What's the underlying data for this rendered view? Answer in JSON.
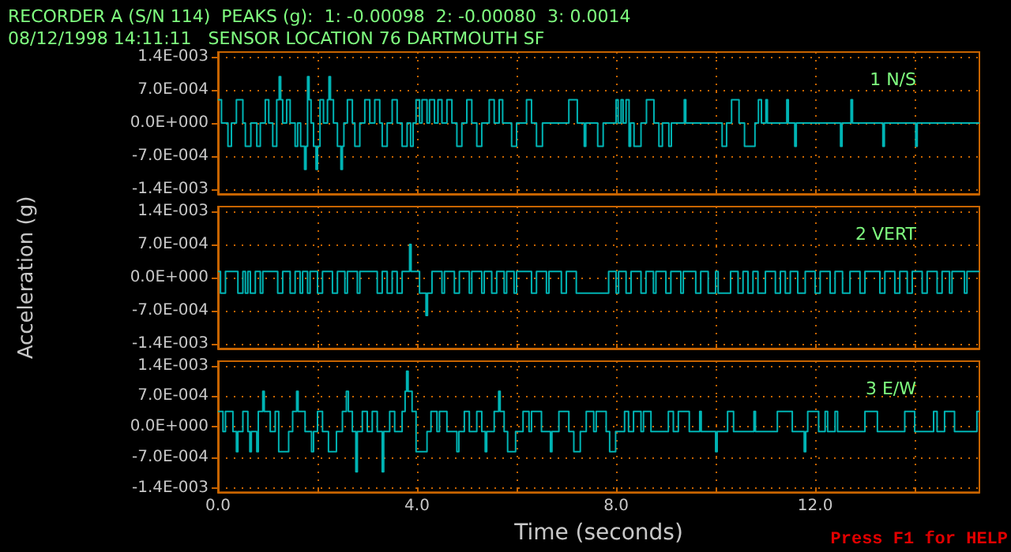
{
  "chart_data": [
    {
      "type": "step",
      "title": "RECORDER A (S/N 114)  PEAKS (g):  1: -0.00098  2: -0.00080  3: 0.0014",
      "subtitle": "08/12/1998 14:11:11   SENSOR LOCATION 76 DARTMOUTH SF",
      "xlim": [
        0,
        15.3
      ],
      "xticks": [
        {
          "value": 0,
          "label": null
        },
        {
          "value": 2,
          "label": null
        },
        {
          "value": 4,
          "label": null
        },
        {
          "value": 6,
          "label": null
        },
        {
          "value": 8,
          "label": null
        },
        {
          "value": 10,
          "label": null
        },
        {
          "value": 12,
          "label": null
        },
        {
          "value": 14,
          "label": null
        }
      ],
      "ylim": [
        -0.0015,
        0.0015
      ],
      "yticks": [
        {
          "value": -0.0014,
          "label": "-1.4E-003"
        },
        {
          "value": -0.0007,
          "label": "-7.0E-004"
        },
        {
          "value": 0,
          "label": "0.0E+000"
        },
        {
          "value": 0.0007,
          "label": "7.0E-004"
        },
        {
          "value": 0.0014,
          "label": "1.4E-003"
        }
      ],
      "grid": true,
      "tick_labels": "y",
      "series": [
        {
          "name": "1 N/S",
          "color": "#00b4b4",
          "x": [
            0,
            0.07,
            0.2,
            0.27,
            0.37,
            0.5,
            0.55,
            0.66,
            0.78,
            0.85,
            0.95,
            1.02,
            1.1,
            1.18,
            1.23,
            1.26,
            1.3,
            1.38,
            1.45,
            1.55,
            1.6,
            1.66,
            1.74,
            1.77,
            1.8,
            1.83,
            1.87,
            1.92,
            1.97,
            2.0,
            2.05,
            2.12,
            2.2,
            2.23,
            2.26,
            2.32,
            2.4,
            2.47,
            2.5,
            2.53,
            2.6,
            2.7,
            2.75,
            2.85,
            2.95,
            3.05,
            3.15,
            3.25,
            3.3,
            3.4,
            3.5,
            3.6,
            3.7,
            3.8,
            3.87,
            3.92,
            3.98,
            4.05,
            4.1,
            4.2,
            4.25,
            4.35,
            4.42,
            4.5,
            4.6,
            4.7,
            4.8,
            4.9,
            5.0,
            5.1,
            5.2,
            5.3,
            5.45,
            5.55,
            5.65,
            5.72,
            5.9,
            6.0,
            6.2,
            6.3,
            6.4,
            6.52,
            7.05,
            7.22,
            7.36,
            7.39,
            7.63,
            7.74,
            8.0,
            8.04,
            8.1,
            8.14,
            8.2,
            8.26,
            8.29,
            8.36,
            8.5,
            8.61,
            8.76,
            8.86,
            8.93,
            9.06,
            9.11,
            9.37,
            9.4,
            10.13,
            10.22,
            10.32,
            10.47,
            10.58,
            10.79,
            10.86,
            10.92,
            11.01,
            11.04,
            11.43,
            11.46,
            11.59,
            11.62,
            12.51,
            12.54,
            12.72,
            12.75,
            13.36,
            13.39,
            14.02,
            14.05,
            15.3
          ],
          "values": [
            0.00049,
            0,
            -0.00049,
            0,
            0.00049,
            0,
            -0.00049,
            0,
            -0.00049,
            0,
            0.00049,
            0,
            -0.00049,
            0.00049,
            0.00098,
            0.00049,
            0,
            0.00049,
            0,
            -0.00049,
            0,
            -0.00049,
            -0.00098,
            -0.00049,
            0.00098,
            0.00049,
            0,
            -0.00049,
            -0.00098,
            -0.00049,
            0.00049,
            0,
            0.00049,
            0.00098,
            0.00049,
            0,
            -0.00049,
            -0.00098,
            -0.00049,
            0,
            0.00049,
            0,
            -0.00049,
            0,
            0.00049,
            0,
            0.00049,
            0,
            -0.00049,
            0,
            0.00049,
            0,
            -0.00049,
            0,
            -0.00049,
            0,
            0.00049,
            0,
            0.00049,
            0,
            0.00049,
            0,
            0.00049,
            0,
            0.00049,
            0,
            -0.00049,
            0,
            0.00049,
            0,
            -0.00049,
            0,
            0.00049,
            0,
            0.00049,
            0,
            -0.00049,
            0,
            0.00049,
            0,
            -0.00049,
            0,
            0.00049,
            0,
            -0.00049,
            0,
            -0.00049,
            0,
            0.00049,
            0,
            0.00049,
            0,
            0.00049,
            -0.00049,
            0,
            -0.00049,
            0,
            0.00049,
            0,
            -0.00049,
            0,
            -0.00049,
            0,
            0.00049,
            0,
            -0.00049,
            0,
            0.00049,
            0,
            -0.00049,
            0,
            0.00049,
            0,
            0.00049,
            0,
            0.00049,
            0,
            -0.00049,
            0,
            -0.00049,
            0,
            0.00049,
            0,
            -0.00049,
            0,
            -0.00049,
            0,
            0
          ]
        }
      ]
    },
    {
      "type": "step",
      "ylabel": "Acceleration (g)",
      "xlim": [
        0,
        15.3
      ],
      "xticks": [
        {
          "value": 0,
          "label": null
        },
        {
          "value": 2,
          "label": null
        },
        {
          "value": 4,
          "label": null
        },
        {
          "value": 6,
          "label": null
        },
        {
          "value": 8,
          "label": null
        },
        {
          "value": 10,
          "label": null
        },
        {
          "value": 12,
          "label": null
        },
        {
          "value": 14,
          "label": null
        }
      ],
      "ylim": [
        -0.0015,
        0.0015
      ],
      "yticks": [
        {
          "value": -0.0014,
          "label": "-1.4E-003"
        },
        {
          "value": -0.0007,
          "label": "-7.0E-004"
        },
        {
          "value": 0,
          "label": "0.0E+000"
        },
        {
          "value": 0.0007,
          "label": "7.0E-004"
        },
        {
          "value": 0.0014,
          "label": "1.4E-003"
        }
      ],
      "grid": true,
      "tick_labels": "y",
      "series": [
        {
          "name": "2 VERT",
          "color": "#00b4b4",
          "x": [
            0,
            0.05,
            0.15,
            0.4,
            0.5,
            0.55,
            0.6,
            0.65,
            0.75,
            0.85,
            0.9,
            1.2,
            1.3,
            1.45,
            1.55,
            1.65,
            1.7,
            1.8,
            1.85,
            2.0,
            2.1,
            2.3,
            2.4,
            2.55,
            2.6,
            2.8,
            2.85,
            3.2,
            3.3,
            3.4,
            3.5,
            3.6,
            3.7,
            3.85,
            3.88,
            4.05,
            4.18,
            4.21,
            4.3,
            4.5,
            4.55,
            4.75,
            4.85,
            5.05,
            5.1,
            5.3,
            5.35,
            5.5,
            5.6,
            5.75,
            5.8,
            5.95,
            6.0,
            6.3,
            6.4,
            6.6,
            6.65,
            6.9,
            7.0,
            7.2,
            7.85,
            8.0,
            8.05,
            8.2,
            8.3,
            8.5,
            8.6,
            8.75,
            8.8,
            9.0,
            9.1,
            9.3,
            9.35,
            9.6,
            9.7,
            9.85,
            10.0,
            10.05,
            10.3,
            10.45,
            10.55,
            10.65,
            10.75,
            10.85,
            11.0,
            11.2,
            11.3,
            11.4,
            11.5,
            11.65,
            11.8,
            12.0,
            12.1,
            12.3,
            12.4,
            12.55,
            12.7,
            12.9,
            13.0,
            13.3,
            13.4,
            13.6,
            13.7,
            13.85,
            13.95,
            14.15,
            14.25,
            14.45,
            14.55,
            14.7,
            14.75,
            15.0,
            15.05,
            15.3
          ],
          "values": [
            0.00013,
            -0.00033,
            0.00013,
            -0.00033,
            0.00013,
            -0.00033,
            0.00013,
            -0.00033,
            0.00013,
            -0.00033,
            0.00013,
            -0.00033,
            0.00013,
            -0.00033,
            0.00013,
            -0.00033,
            0.00013,
            -0.00033,
            0.00013,
            -0.00033,
            0.00013,
            -0.00033,
            0.00013,
            -0.00033,
            0.00013,
            -0.00033,
            0.00013,
            -0.00033,
            0.00013,
            -0.00033,
            0.00013,
            -0.00033,
            0.00013,
            0.0007,
            0.00013,
            -0.00033,
            -0.0008,
            -0.00033,
            0.00013,
            -0.00033,
            0.00013,
            -0.00033,
            0.00013,
            -0.00033,
            0.00013,
            -0.00033,
            0.00013,
            -0.00033,
            0.00013,
            -0.00033,
            0.00013,
            -0.00033,
            0.00013,
            -0.00033,
            0.00013,
            -0.00033,
            0.00013,
            -0.00033,
            0.00013,
            -0.00033,
            0.00013,
            -0.00033,
            0.00013,
            -0.00033,
            0.00013,
            -0.00033,
            0.00013,
            -0.00033,
            0.00013,
            -0.00033,
            0.00013,
            -0.00033,
            0.00013,
            -0.00033,
            0.00013,
            -0.00033,
            0.00013,
            -0.00033,
            0.00013,
            -0.00033,
            0.00013,
            -0.00033,
            0.00013,
            -0.00033,
            0.00013,
            -0.00033,
            0.00013,
            -0.00033,
            0.00013,
            -0.00033,
            0.00013,
            -0.00033,
            0.00013,
            -0.00033,
            0.00013,
            -0.00033,
            0.00013,
            -0.00033,
            0.00013,
            -0.00033,
            0.00013,
            -0.00033,
            0.00013,
            -0.00033,
            0.00013,
            -0.00033,
            0.00013,
            -0.00033,
            0.00013,
            -0.00033,
            0.00013,
            -0.00033,
            0.00013,
            0.00013
          ]
        }
      ]
    },
    {
      "type": "step",
      "xlabel": "Time (seconds)",
      "annotations": [
        "Press F1 for HELP"
      ],
      "xlim": [
        0,
        15.3
      ],
      "xticks": [
        {
          "value": 0,
          "label": "0.0"
        },
        {
          "value": 2,
          "label": null
        },
        {
          "value": 4,
          "label": "4.0"
        },
        {
          "value": 6,
          "label": null
        },
        {
          "value": 8,
          "label": "8.0"
        },
        {
          "value": 10,
          "label": null
        },
        {
          "value": 12,
          "label": "12.0"
        },
        {
          "value": 14,
          "label": null
        }
      ],
      "ylim": [
        -0.0015,
        0.0015
      ],
      "yticks": [
        {
          "value": -0.0014,
          "label": "-1.4E-003"
        },
        {
          "value": -0.0007,
          "label": "-7.0E-004"
        },
        {
          "value": 0,
          "label": "0.0E+000"
        },
        {
          "value": 0.0007,
          "label": "7.0E-004"
        },
        {
          "value": 0.0014,
          "label": "1.4E-003"
        }
      ],
      "grid": true,
      "series": [
        {
          "name": "3 E/W",
          "color": "#00b4b4",
          "x": [
            0,
            0.1,
            0.15,
            0.3,
            0.37,
            0.4,
            0.5,
            0.6,
            0.64,
            0.67,
            0.78,
            0.81,
            0.9,
            0.93,
            1.05,
            1.15,
            1.22,
            1.42,
            1.5,
            1.58,
            1.61,
            1.75,
            1.88,
            1.92,
            2.0,
            2.1,
            2.22,
            2.38,
            2.5,
            2.58,
            2.62,
            2.7,
            2.77,
            2.8,
            2.9,
            3.0,
            3.1,
            3.2,
            3.3,
            3.33,
            3.45,
            3.55,
            3.7,
            3.76,
            3.79,
            3.82,
            3.9,
            3.98,
            4.2,
            4.28,
            4.4,
            4.45,
            4.6,
            4.8,
            4.84,
            4.95,
            5.05,
            5.2,
            5.3,
            5.37,
            5.4,
            5.55,
            5.64,
            5.67,
            5.75,
            5.82,
            5.98,
            6.13,
            6.25,
            6.3,
            6.5,
            6.68,
            6.71,
            6.85,
            7.05,
            7.15,
            7.28,
            7.4,
            7.55,
            7.6,
            7.8,
            7.87,
            7.99,
            8.17,
            8.25,
            8.35,
            8.5,
            8.55,
            8.7,
            9.05,
            9.15,
            9.25,
            9.47,
            9.68,
            9.71,
            10.0,
            10.03,
            10.24,
            10.36,
            10.77,
            10.8,
            11.24,
            11.54,
            11.78,
            11.81,
            11.85,
            12.07,
            12.2,
            12.25,
            12.4,
            12.45,
            13.0,
            13.25,
            13.8,
            14.0,
            14.38,
            14.45,
            14.6,
            14.8,
            15.25,
            15.3
          ],
          "values": [
            0.00035,
            -0.00011,
            0.00035,
            -0.00011,
            -0.00057,
            -0.00011,
            0.00035,
            -0.00011,
            -0.00057,
            -0.00011,
            -0.00057,
            0.00035,
            0.00081,
            0.00035,
            -0.00011,
            0.00035,
            -0.00057,
            -0.00011,
            0.00035,
            0.00081,
            0.00035,
            -0.00011,
            -0.00057,
            -0.00011,
            0.00035,
            -0.00011,
            -0.00057,
            -0.00011,
            0.00035,
            0.00081,
            0.00035,
            -0.00011,
            -0.00103,
            -0.00011,
            0.00035,
            -0.00011,
            0.00035,
            -0.00011,
            -0.00103,
            -0.00011,
            0.00035,
            -0.00011,
            0.00035,
            0.00081,
            0.00127,
            0.00081,
            0.00035,
            -0.00057,
            -0.00011,
            0.00035,
            -0.00011,
            0.00035,
            -0.00011,
            -0.00057,
            -0.00011,
            0.00035,
            -0.00011,
            0.00035,
            -0.00011,
            -0.00057,
            -0.00011,
            0.00035,
            0.00081,
            0.00035,
            -0.00011,
            -0.00057,
            -0.00011,
            0.00035,
            -0.00011,
            0.00035,
            -0.00011,
            -0.00057,
            -0.00011,
            0.00035,
            -0.00011,
            -0.00057,
            -0.00011,
            0.00035,
            -0.00011,
            0.00035,
            -0.00011,
            -0.00057,
            -0.00011,
            0.00035,
            -0.00011,
            0.00035,
            -0.00011,
            0.00035,
            -0.00011,
            0.00035,
            -0.00011,
            0.00035,
            -0.00011,
            0.00035,
            -0.00011,
            -0.00057,
            -0.00011,
            0.00035,
            -0.00011,
            0.00035,
            -0.00011,
            0.00035,
            -0.00011,
            -0.00057,
            -0.00011,
            0.00035,
            -0.00011,
            0.00035,
            -0.00011,
            0.00035,
            -0.00011,
            0.00035,
            -0.00011,
            0.00035,
            -0.00011,
            0.00035,
            -0.00011,
            0.00035,
            -0.00011,
            0.00035,
            0.00035
          ]
        }
      ]
    }
  ]
}
